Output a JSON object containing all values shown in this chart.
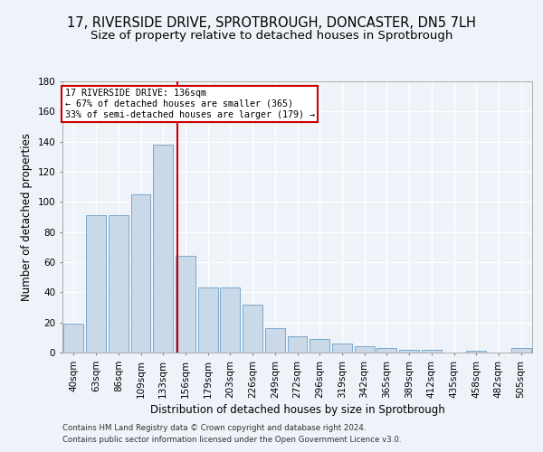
{
  "title_line1": "17, RIVERSIDE DRIVE, SPROTBROUGH, DONCASTER, DN5 7LH",
  "title_line2": "Size of property relative to detached houses in Sprotbrough",
  "xlabel": "Distribution of detached houses by size in Sprotbrough",
  "ylabel": "Number of detached properties",
  "footer_line1": "Contains HM Land Registry data © Crown copyright and database right 2024.",
  "footer_line2": "Contains public sector information licensed under the Open Government Licence v3.0.",
  "bar_labels": [
    "40sqm",
    "63sqm",
    "86sqm",
    "109sqm",
    "133sqm",
    "156sqm",
    "179sqm",
    "203sqm",
    "226sqm",
    "249sqm",
    "272sqm",
    "296sqm",
    "319sqm",
    "342sqm",
    "365sqm",
    "389sqm",
    "412sqm",
    "435sqm",
    "458sqm",
    "482sqm",
    "505sqm"
  ],
  "bar_values": [
    19,
    91,
    91,
    105,
    138,
    64,
    43,
    43,
    32,
    16,
    11,
    9,
    6,
    4,
    3,
    2,
    2,
    0,
    1,
    0,
    3
  ],
  "bar_color": "#c9d9e8",
  "bar_edge_color": "#7aa8cc",
  "annotation_line1": "17 RIVERSIDE DRIVE: 136sqm",
  "annotation_line2": "← 67% of detached houses are smaller (365)",
  "annotation_line3": "33% of semi-detached houses are larger (179) →",
  "vline_x": 4.62,
  "vline_color": "#cc0000",
  "annotation_box_color": "#cc0000",
  "ylim": [
    0,
    180
  ],
  "yticks": [
    0,
    20,
    40,
    60,
    80,
    100,
    120,
    140,
    160,
    180
  ],
  "background_color": "#eef2f9",
  "grid_color": "#ffffff",
  "title_fontsize": 10.5,
  "subtitle_fontsize": 9.5,
  "axis_label_fontsize": 8.5,
  "tick_fontsize": 7.5,
  "footer_fontsize": 6.2
}
